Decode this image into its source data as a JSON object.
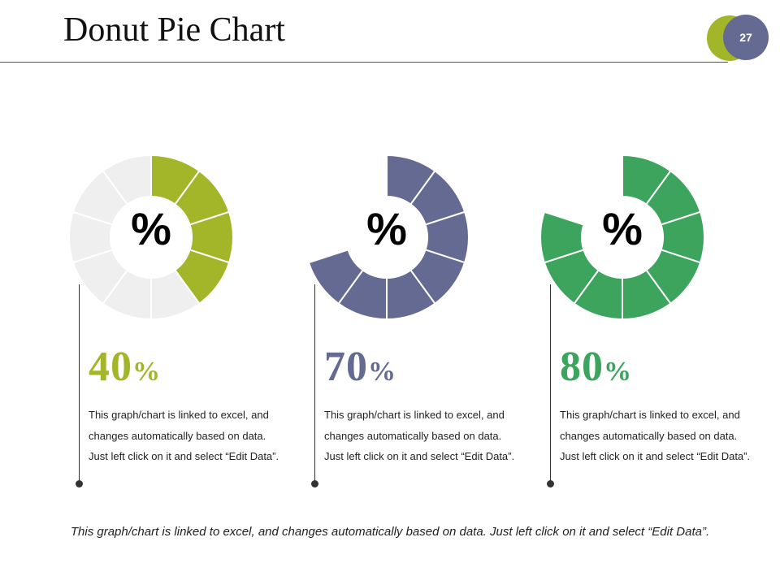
{
  "slide": {
    "title": "Donut Pie Chart",
    "page_number": "27",
    "badge_colors": {
      "back": "#a3b529",
      "front": "#656a93"
    },
    "footer_text": "This graph/chart is linked to excel, and changes automatically based on data. Just left click on it and select “Edit Data”."
  },
  "chart_data": [
    {
      "type": "pie",
      "style": "donut",
      "segments": 10,
      "value": 40,
      "percent_label": "40",
      "percent_sign": "%",
      "center_symbol": "%",
      "color": "#a3b529",
      "remainder_color": "#efefef",
      "description": "This graph/chart is linked to excel, and changes automatically based on data. Just left click on it and select “Edit Data”."
    },
    {
      "type": "pie",
      "style": "donut",
      "segments": 10,
      "value": 70,
      "percent_label": "70",
      "percent_sign": "%",
      "center_symbol": "%",
      "color": "#656a93",
      "remainder_color": "none",
      "description": "This graph/chart is linked to excel, and changes automatically based on data. Just left click on it and select “Edit Data”."
    },
    {
      "type": "pie",
      "style": "donut",
      "segments": 10,
      "value": 80,
      "percent_label": "80",
      "percent_sign": "%",
      "center_symbol": "%",
      "color": "#3ca45c",
      "remainder_color": "none",
      "description": "This graph/chart is linked to excel, and changes automatically based on data. Just left click on it and select “Edit Data”."
    }
  ]
}
